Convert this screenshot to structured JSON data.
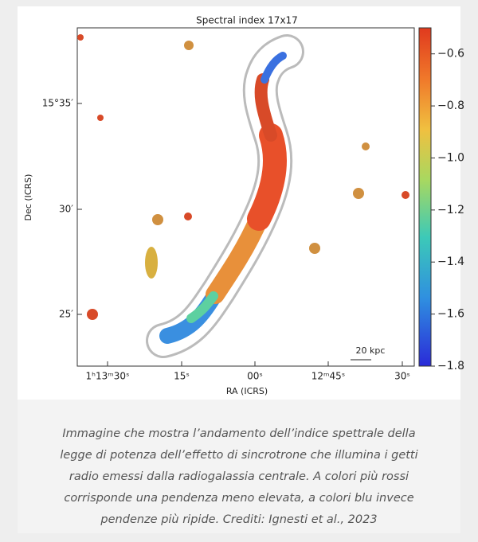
{
  "figure": {
    "title": "Spectral index 17x17",
    "xlabel": "RA (ICRS)",
    "ylabel": "Dec (ICRS)",
    "xticks": [
      "1ʰ13ᵐ30ˢ",
      "15ˢ",
      "00ˢ",
      "12ᵐ45ˢ",
      "30ˢ"
    ],
    "yticks": [
      "15°35′",
      "30′",
      "25′"
    ],
    "scalebar": "20 kpc",
    "colorbar": {
      "lim": [
        -1.8,
        -0.5
      ],
      "ticks": [
        {
          "value": -0.6,
          "label": "−0.6"
        },
        {
          "value": -0.8,
          "label": "−0.8"
        },
        {
          "value": -1.0,
          "label": "−1.0"
        },
        {
          "value": -1.2,
          "label": "−1.2"
        },
        {
          "value": -1.4,
          "label": "−1.4"
        },
        {
          "value": -1.6,
          "label": "−1.6"
        },
        {
          "value": -1.8,
          "label": "−1.8"
        }
      ]
    }
  },
  "caption": {
    "lines": [
      "Immagine che mostra l’andamento dell’indice spettrale della",
      "legge di potenza dell’effetto di sincrotrone che illumina i getti",
      "radio emessi dalla radiogalassia centrale. A colori più rossi",
      "corrisponde una pendenza meno elevata, a colori blu invece",
      "pendenze più ripide. Crediti: Ignesti et al., 2023"
    ]
  }
}
